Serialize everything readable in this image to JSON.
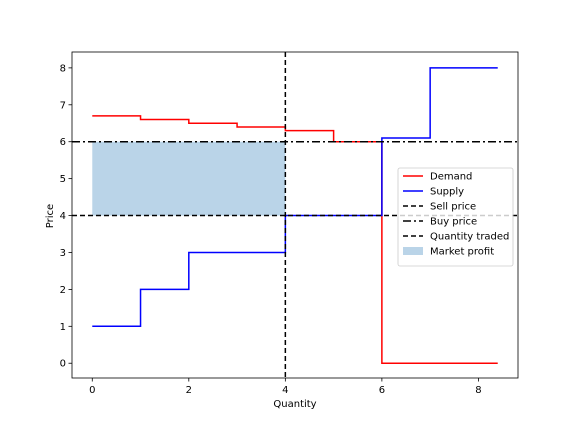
{
  "chart_data": {
    "type": "line",
    "xlabel": "Quantity",
    "ylabel": "Price",
    "xlim": [
      -0.42,
      8.82
    ],
    "ylim": [
      -0.4,
      8.43
    ],
    "xticks": [
      0,
      2,
      4,
      6,
      8
    ],
    "yticks": [
      0,
      1,
      2,
      3,
      4,
      5,
      6,
      7,
      8
    ],
    "grid": false,
    "legend_position": "center-right",
    "series": [
      {
        "name": "Demand",
        "color": "#ff0000",
        "style": "solid",
        "points": [
          [
            0,
            6.7
          ],
          [
            1,
            6.7
          ],
          [
            1,
            6.6
          ],
          [
            2,
            6.6
          ],
          [
            2,
            6.5
          ],
          [
            3,
            6.5
          ],
          [
            3,
            6.4
          ],
          [
            4,
            6.4
          ],
          [
            4,
            6.3
          ],
          [
            5,
            6.3
          ],
          [
            5,
            6.0
          ],
          [
            6,
            6.0
          ],
          [
            6,
            0.0
          ],
          [
            8.4,
            0.0
          ]
        ]
      },
      {
        "name": "Supply",
        "color": "#0000ff",
        "style": "solid",
        "points": [
          [
            0,
            1.0
          ],
          [
            1,
            1.0
          ],
          [
            1,
            2.0
          ],
          [
            2,
            2.0
          ],
          [
            2,
            3.0
          ],
          [
            4,
            3.0
          ],
          [
            4,
            4.0
          ],
          [
            6,
            4.0
          ],
          [
            6,
            6.1
          ],
          [
            7,
            6.1
          ],
          [
            7,
            8.0
          ],
          [
            8.4,
            8.0
          ]
        ]
      }
    ],
    "sell_price": {
      "name": "Sell price",
      "value": 4,
      "color": "#000000",
      "style": "dashed"
    },
    "buy_price": {
      "name": "Buy price",
      "value": 6,
      "color": "#000000",
      "style": "dashdot"
    },
    "quantity_traded": {
      "name": "Quantity traded",
      "value": 4,
      "color": "#000000",
      "style": "dashed"
    },
    "market_profit": {
      "name": "Market profit",
      "x_range": [
        0,
        4
      ],
      "y_range": [
        4,
        6
      ],
      "color": "#bad4e8"
    },
    "legend_order": [
      "Demand",
      "Supply",
      "Sell price",
      "Buy price",
      "Quantity traded",
      "Market profit"
    ]
  }
}
